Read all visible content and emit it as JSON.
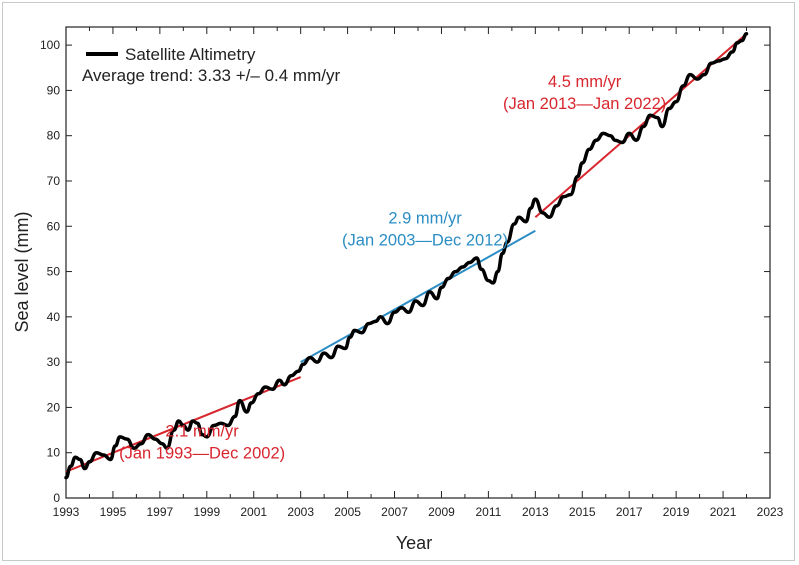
{
  "chart_data": {
    "type": "line",
    "xlabel": "Year",
    "ylabel": "Sea level (mm)",
    "xlim": [
      1993,
      2023
    ],
    "ylim": [
      0,
      104
    ],
    "x_ticks": [
      1993,
      1995,
      1997,
      1999,
      2001,
      2003,
      2005,
      2007,
      2009,
      2011,
      2013,
      2015,
      2017,
      2019,
      2021,
      2023
    ],
    "y_ticks": [
      0,
      10,
      20,
      30,
      40,
      50,
      60,
      70,
      80,
      90,
      100
    ],
    "legend": {
      "label": "Satellite Altimetry",
      "subtitle": "Average trend: 3.33 +/– 0.4 mm/yr",
      "placement": "top-left"
    },
    "series": [
      {
        "name": "Satellite Altimetry",
        "color": "#000000",
        "points": [
          [
            1993.0,
            4.5
          ],
          [
            1993.2,
            7.0
          ],
          [
            1993.4,
            9.0
          ],
          [
            1993.6,
            8.5
          ],
          [
            1993.8,
            6.5
          ],
          [
            1994.0,
            8.0
          ],
          [
            1994.3,
            10.0
          ],
          [
            1994.6,
            9.5
          ],
          [
            1994.9,
            8.5
          ],
          [
            1995.1,
            11.5
          ],
          [
            1995.3,
            13.5
          ],
          [
            1995.6,
            13.0
          ],
          [
            1995.9,
            11.0
          ],
          [
            1996.2,
            12.0
          ],
          [
            1996.5,
            14.0
          ],
          [
            1996.8,
            13.0
          ],
          [
            1997.1,
            12.0
          ],
          [
            1997.3,
            11.0
          ],
          [
            1997.6,
            15.0
          ],
          [
            1997.8,
            17.0
          ],
          [
            1998.0,
            16.0
          ],
          [
            1998.2,
            15.0
          ],
          [
            1998.4,
            17.0
          ],
          [
            1998.6,
            16.5
          ],
          [
            1998.8,
            14.0
          ],
          [
            1999.0,
            13.5
          ],
          [
            1999.3,
            16.0
          ],
          [
            1999.6,
            16.5
          ],
          [
            1999.9,
            16.0
          ],
          [
            2000.2,
            18.0
          ],
          [
            2000.4,
            21.5
          ],
          [
            2000.7,
            19.0
          ],
          [
            2000.9,
            21.0
          ],
          [
            2001.2,
            23.0
          ],
          [
            2001.5,
            24.5
          ],
          [
            2001.8,
            24.0
          ],
          [
            2002.1,
            26.0
          ],
          [
            2002.3,
            25.0
          ],
          [
            2002.6,
            27.0
          ],
          [
            2002.9,
            28.0
          ],
          [
            2003.1,
            29.5
          ],
          [
            2003.4,
            31.0
          ],
          [
            2003.7,
            30.0
          ],
          [
            2004.0,
            32.0
          ],
          [
            2004.3,
            31.0
          ],
          [
            2004.6,
            33.5
          ],
          [
            2004.9,
            33.0
          ],
          [
            2005.1,
            35.5
          ],
          [
            2005.3,
            37.0
          ],
          [
            2005.6,
            36.5
          ],
          [
            2005.9,
            38.5
          ],
          [
            2006.2,
            39.0
          ],
          [
            2006.4,
            40.0
          ],
          [
            2006.7,
            38.5
          ],
          [
            2007.0,
            41.0
          ],
          [
            2007.3,
            42.0
          ],
          [
            2007.6,
            41.0
          ],
          [
            2007.9,
            43.5
          ],
          [
            2008.2,
            42.5
          ],
          [
            2008.5,
            45.5
          ],
          [
            2008.8,
            44.0
          ],
          [
            2009.0,
            46.5
          ],
          [
            2009.3,
            48.5
          ],
          [
            2009.6,
            50.0
          ],
          [
            2009.9,
            51.0
          ],
          [
            2010.2,
            52.0
          ],
          [
            2010.5,
            53.0
          ],
          [
            2010.7,
            50.5
          ],
          [
            2011.0,
            48.0
          ],
          [
            2011.2,
            47.5
          ],
          [
            2011.4,
            50.0
          ],
          [
            2011.6,
            54.0
          ],
          [
            2011.8,
            56.5
          ],
          [
            2012.1,
            60.5
          ],
          [
            2012.3,
            62.0
          ],
          [
            2012.6,
            61.0
          ],
          [
            2012.8,
            64.0
          ],
          [
            2013.0,
            66.0
          ],
          [
            2013.3,
            63.0
          ],
          [
            2013.6,
            62.0
          ],
          [
            2013.9,
            64.5
          ],
          [
            2014.2,
            66.5
          ],
          [
            2014.5,
            67.0
          ],
          [
            2014.8,
            71.0
          ],
          [
            2015.0,
            74.0
          ],
          [
            2015.3,
            77.0
          ],
          [
            2015.6,
            79.0
          ],
          [
            2015.9,
            80.5
          ],
          [
            2016.2,
            80.0
          ],
          [
            2016.4,
            79.0
          ],
          [
            2016.7,
            78.5
          ],
          [
            2017.0,
            80.5
          ],
          [
            2017.3,
            79.0
          ],
          [
            2017.6,
            82.0
          ],
          [
            2017.9,
            84.5
          ],
          [
            2018.2,
            84.0
          ],
          [
            2018.4,
            82.0
          ],
          [
            2018.7,
            86.0
          ],
          [
            2019.0,
            87.5
          ],
          [
            2019.3,
            91.0
          ],
          [
            2019.6,
            93.5
          ],
          [
            2019.9,
            92.5
          ],
          [
            2020.2,
            93.5
          ],
          [
            2020.5,
            96.0
          ],
          [
            2020.8,
            96.5
          ],
          [
            2021.1,
            97.0
          ],
          [
            2021.4,
            98.5
          ],
          [
            2021.6,
            100.5
          ],
          [
            2021.8,
            101.0
          ],
          [
            2022.0,
            102.5
          ]
        ]
      }
    ],
    "trend_lines": [
      {
        "name": "1993-2002 trend",
        "color": "#d8262e",
        "x": [
          1993.0,
          2003.0
        ],
        "y": [
          5.8,
          26.7
        ],
        "label_rate": "2.1 mm/yr",
        "label_period": "(Jan 1993—Dec 2002)",
        "label_anchor": [
          1998.8,
          13.6
        ]
      },
      {
        "name": "2003-2012 trend",
        "color": "#2b8dc4",
        "x": [
          2003.0,
          2013.0
        ],
        "y": [
          30.0,
          59.0
        ],
        "label_rate": "2.9 mm/yr",
        "label_period": "(Jan 2003—Dec 2012)",
        "label_anchor": [
          2008.3,
          60.6
        ]
      },
      {
        "name": "2013-2022 trend",
        "color": "#d8262e",
        "x": [
          2013.0,
          2022.0
        ],
        "y": [
          62.0,
          102.5
        ],
        "label_rate": "4.5 mm/yr",
        "label_period": "(Jan 2013—Jan 2022)",
        "label_anchor": [
          2015.1,
          90.8
        ]
      }
    ]
  }
}
